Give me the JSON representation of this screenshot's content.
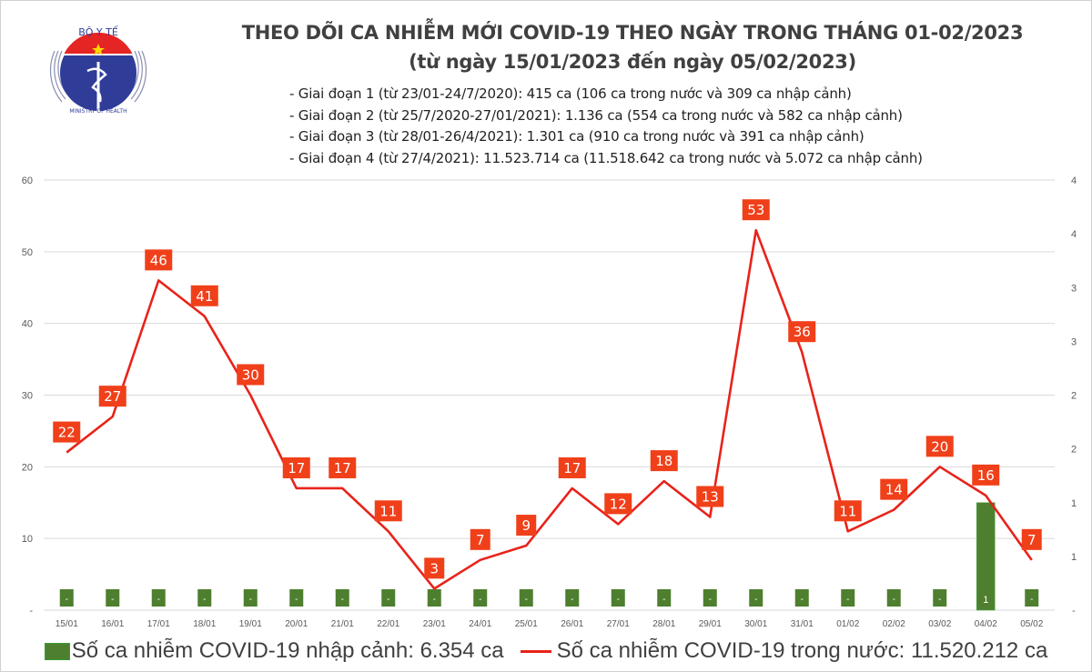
{
  "logo": {
    "top_text": "BỘ Y TẾ",
    "bottom_text": "MINISTRY OF HEALTH"
  },
  "header": {
    "title": "THEO DÕI CA NHIỄM MỚI COVID-19 THEO NGÀY TRONG THÁNG 01-02/2023",
    "subtitle": "(từ ngày 15/01/2023 đến ngày 05/02/2023)",
    "phases": [
      "- Giai đoạn 1 (từ 23/01-24/7/2020): 415 ca (106 ca trong nước và 309 ca nhập cảnh)",
      "- Giai đoạn 2 (từ 25/7/2020-27/01/2021): 1.136 ca (554 ca trong nước và 582 ca nhập cảnh)",
      "- Giai đoạn 3 (từ 28/01-26/4/2021): 1.301 ca (910 ca trong nước và 391 ca nhập cảnh)",
      "- Giai đoạn 4 (từ 27/4/2021): 11.523.714 ca (11.518.642 ca trong nước và 5.072 ca nhập cảnh)"
    ]
  },
  "chart_data": {
    "type": "bar+line",
    "categories": [
      "15/01",
      "16/01",
      "17/01",
      "18/01",
      "19/01",
      "20/01",
      "21/01",
      "22/01",
      "23/01",
      "24/01",
      "25/01",
      "26/01",
      "27/01",
      "28/01",
      "29/01",
      "30/01",
      "31/01",
      "01/02",
      "02/02",
      "03/02",
      "04/02",
      "05/02"
    ],
    "series": [
      {
        "name": "Số ca nhiễm COVID-19 nhập cảnh: 6.354 ca",
        "type": "bar",
        "axis": "right",
        "color": "#4e7f2f",
        "values": [
          0,
          0,
          0,
          0,
          0,
          0,
          0,
          0,
          0,
          0,
          0,
          0,
          0,
          0,
          0,
          0,
          0,
          0,
          0,
          0,
          1,
          0
        ],
        "labels": [
          "-",
          "-",
          "-",
          "-",
          "-",
          "-",
          "-",
          "-",
          "-",
          "-",
          "-",
          "-",
          "-",
          "-",
          "-",
          "-",
          "-",
          "-",
          "-",
          "-",
          "1",
          "-"
        ]
      },
      {
        "name": "Số ca nhiễm COVID-19 trong nước: 11.520.212 ca",
        "type": "line",
        "axis": "left",
        "color": "#e8231a",
        "label_color": "#f0401a",
        "values": [
          22,
          27,
          46,
          41,
          30,
          17,
          17,
          11,
          3,
          7,
          9,
          17,
          12,
          18,
          13,
          53,
          36,
          11,
          14,
          20,
          16,
          7
        ]
      }
    ],
    "left_axis": {
      "ylim": [
        0,
        60
      ],
      "ticks": [
        "-",
        "10",
        "20",
        "30",
        "40",
        "50",
        "60"
      ]
    },
    "right_axis": {
      "ylim": [
        0,
        4
      ],
      "ticks": [
        "-",
        "1",
        "1",
        "2",
        "2",
        "3",
        "3",
        "4",
        "4"
      ]
    },
    "grid": true,
    "legend_position": "bottom"
  }
}
